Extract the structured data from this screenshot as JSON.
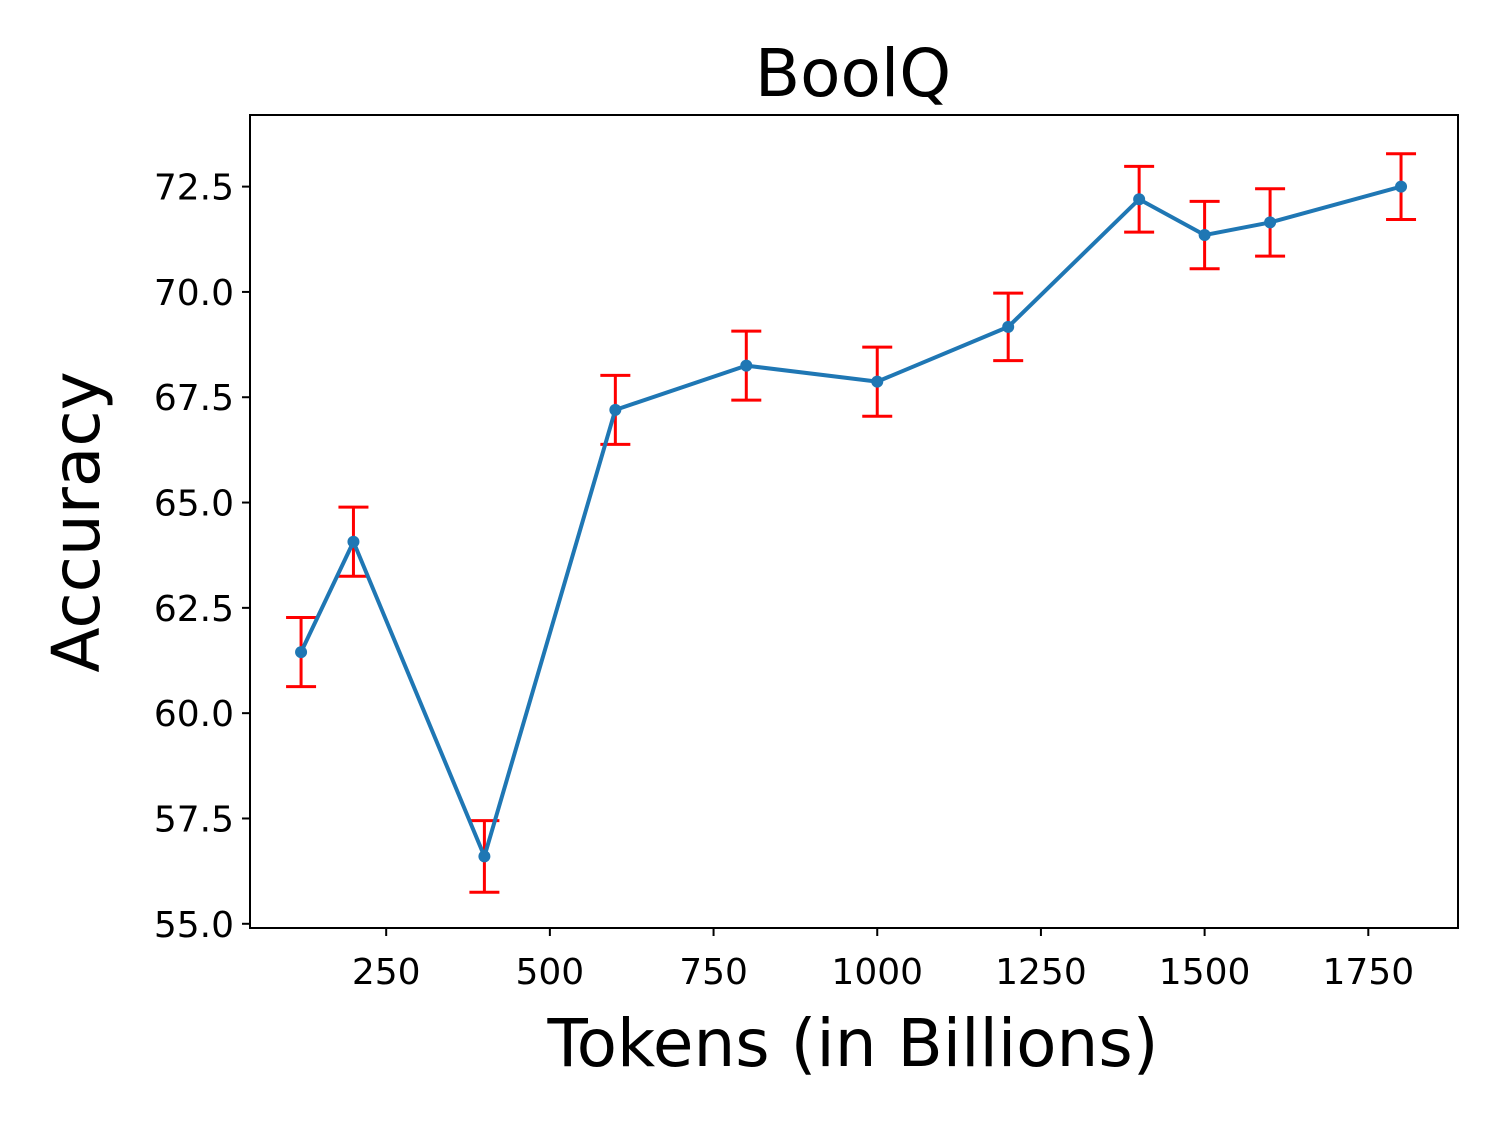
{
  "chart_data": {
    "type": "line",
    "title": "BoolQ",
    "xlabel": "Tokens (in Billions)",
    "ylabel": "Accuracy",
    "xlim": [
      42,
      1887
    ],
    "ylim": [
      54.9,
      74.2
    ],
    "xticks": [
      250,
      500,
      750,
      1000,
      1250,
      1500,
      1750
    ],
    "xtick_labels": [
      "250",
      "500",
      "750",
      "1000",
      "1250",
      "1500",
      "1750"
    ],
    "yticks": [
      55.0,
      57.5,
      60.0,
      62.5,
      65.0,
      67.5,
      70.0,
      72.5
    ],
    "ytick_labels": [
      "55.0",
      "57.5",
      "60.0",
      "62.5",
      "65.0",
      "67.5",
      "70.0",
      "72.5"
    ],
    "grid": false,
    "series": [
      {
        "x": [
          120,
          200,
          400,
          600,
          800,
          1000,
          1200,
          1400,
          1500,
          1600,
          1800
        ],
        "values": [
          61.45,
          64.07,
          56.6,
          67.2,
          68.25,
          67.87,
          69.17,
          72.2,
          71.35,
          71.65,
          72.5
        ],
        "error": [
          0.82,
          0.82,
          0.85,
          0.82,
          0.82,
          0.82,
          0.8,
          0.78,
          0.8,
          0.8,
          0.78
        ],
        "line_color": "#1f77b4",
        "error_color": "#ff0000"
      }
    ]
  }
}
